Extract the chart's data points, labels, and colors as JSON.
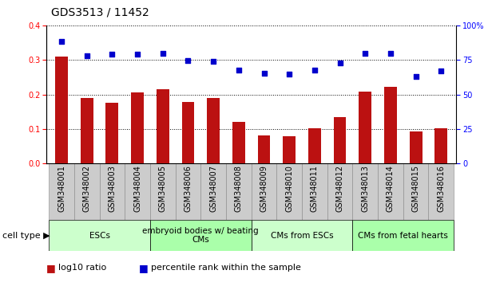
{
  "title": "GDS3513 / 11452",
  "categories": [
    "GSM348001",
    "GSM348002",
    "GSM348003",
    "GSM348004",
    "GSM348005",
    "GSM348006",
    "GSM348007",
    "GSM348008",
    "GSM348009",
    "GSM348010",
    "GSM348011",
    "GSM348012",
    "GSM348013",
    "GSM348014",
    "GSM348015",
    "GSM348016"
  ],
  "log10_ratio": [
    0.31,
    0.19,
    0.175,
    0.207,
    0.215,
    0.178,
    0.19,
    0.12,
    0.082,
    0.08,
    0.102,
    0.135,
    0.208,
    0.222,
    0.093,
    0.102
  ],
  "percentile_rank": [
    88.5,
    78.0,
    79.0,
    79.0,
    80.0,
    74.5,
    74.0,
    67.5,
    65.5,
    64.5,
    67.5,
    73.0,
    79.5,
    80.0,
    63.0,
    67.0
  ],
  "bar_color": "#bb1111",
  "dot_color": "#0000cc",
  "ylim_left": [
    0,
    0.4
  ],
  "ylim_right": [
    0,
    100
  ],
  "yticks_left": [
    0,
    0.1,
    0.2,
    0.3,
    0.4
  ],
  "yticks_right": [
    0,
    25,
    50,
    75,
    100
  ],
  "cell_groups": [
    {
      "label": "ESCs",
      "start": 0,
      "end": 3,
      "color": "#ccffcc"
    },
    {
      "label": "embryoid bodies w/ beating\nCMs",
      "start": 4,
      "end": 7,
      "color": "#aaffaa"
    },
    {
      "label": "CMs from ESCs",
      "start": 8,
      "end": 11,
      "color": "#ccffcc"
    },
    {
      "label": "CMs from fetal hearts",
      "start": 12,
      "end": 15,
      "color": "#aaffaa"
    }
  ],
  "legend_bar_label": "log10 ratio",
  "legend_dot_label": "percentile rank within the sample",
  "cell_type_label": "cell type",
  "background_color": "#ffffff",
  "title_fontsize": 10,
  "tick_fontsize": 7,
  "group_label_fontsize": 7.5,
  "cell_type_fontsize": 8,
  "xticklabel_bg": "#cccccc",
  "n_categories": 16
}
